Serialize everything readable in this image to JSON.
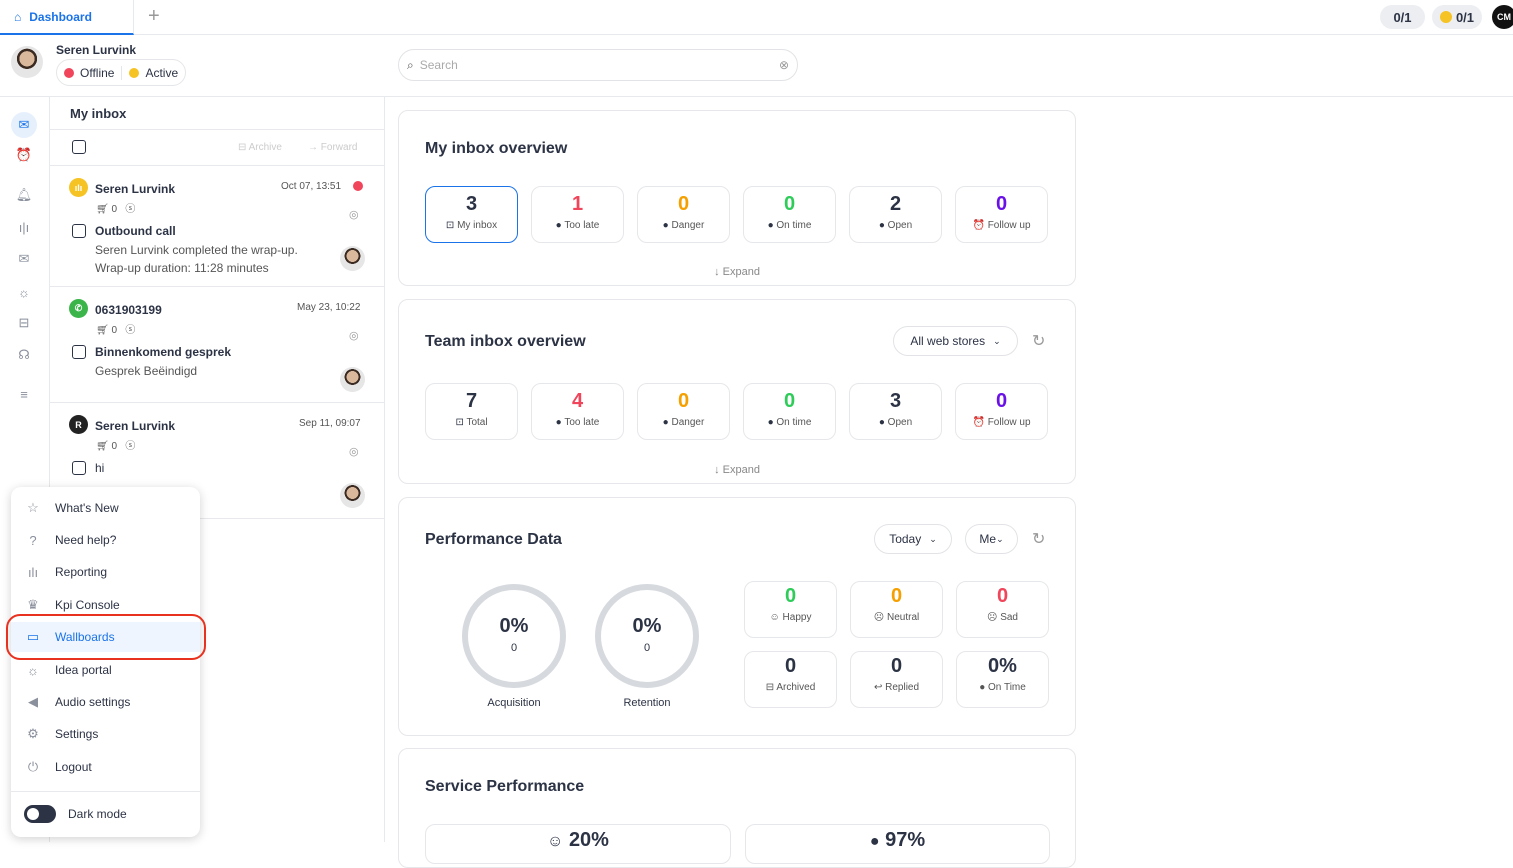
{
  "tabs": {
    "active": "Dashboard",
    "add_icon": "plus-icon"
  },
  "top_right": {
    "queue_count": "0/1",
    "voice_count": "0/1",
    "logo": "CM"
  },
  "user": {
    "name": "Seren Lurvink",
    "status_offline": "Offline",
    "status_active": "Active"
  },
  "search": {
    "placeholder": "Search"
  },
  "inbox": {
    "title": "My inbox",
    "archive": "Archive",
    "forward": "Forward",
    "items": [
      {
        "name": "Seren Lurvink",
        "time": "Oct 07, 13:51",
        "cart": "0",
        "subject": "Outbound call",
        "line1": "Seren Lurvink completed the wrap-up.",
        "line2": "Wrap-up duration: 11:28 minutes",
        "channel": "voice",
        "channel_color": "#f6c324"
      },
      {
        "name": "0631903199",
        "time": "May 23, 10:22",
        "cart": "0",
        "subject": "Binnenkomend gesprek",
        "line1": "Gesprek Beëindigd",
        "line2": "",
        "channel": "phone",
        "channel_color": "#3bb54a"
      },
      {
        "name": "Seren Lurvink",
        "time": "Sep 11, 09:07",
        "cart": "0",
        "subject": "hi",
        "line1": "",
        "line2": "",
        "channel": "R",
        "channel_color": "#222"
      }
    ]
  },
  "menu": {
    "items": [
      "What's New",
      "Need help?",
      "Reporting",
      "Kpi Console",
      "Wallboards",
      "Idea portal",
      "Audio settings",
      "Settings",
      "Logout"
    ],
    "selected": "Wallboards",
    "dark_mode": "Dark mode"
  },
  "my_overview": {
    "title": "My inbox overview",
    "expand": "Expand",
    "tiles": [
      {
        "value": "3",
        "label": "My inbox",
        "color": "#2c3345",
        "icon": "inbox-icon"
      },
      {
        "value": "1",
        "label": "Too late",
        "color": "#f0455a",
        "icon": "clock-icon"
      },
      {
        "value": "0",
        "label": "Danger",
        "color": "#f5a000",
        "icon": "clock-icon"
      },
      {
        "value": "0",
        "label": "On time",
        "color": "#2fcc5a",
        "icon": "clock-icon"
      },
      {
        "value": "2",
        "label": "Open",
        "color": "#2c3345",
        "icon": "clock-icon"
      },
      {
        "value": "0",
        "label": "Follow up",
        "color": "#6a11e8",
        "icon": "alarm-icon"
      }
    ]
  },
  "team_overview": {
    "title": "Team inbox overview",
    "filter": "All web stores",
    "expand": "Expand",
    "tiles": [
      {
        "value": "7",
        "label": "Total",
        "color": "#2c3345",
        "icon": "inbox-icon"
      },
      {
        "value": "4",
        "label": "Too late",
        "color": "#f0455a",
        "icon": "clock-icon"
      },
      {
        "value": "0",
        "label": "Danger",
        "color": "#f5a000",
        "icon": "clock-icon"
      },
      {
        "value": "0",
        "label": "On time",
        "color": "#2fcc5a",
        "icon": "clock-icon"
      },
      {
        "value": "3",
        "label": "Open",
        "color": "#2c3345",
        "icon": "clock-icon"
      },
      {
        "value": "0",
        "label": "Follow up",
        "color": "#6a11e8",
        "icon": "alarm-icon"
      }
    ]
  },
  "performance": {
    "title": "Performance Data",
    "period": "Today",
    "scope": "Me",
    "rings": [
      {
        "pct": "0%",
        "count": "0",
        "label": "Acquisition"
      },
      {
        "pct": "0%",
        "count": "0",
        "label": "Retention"
      }
    ],
    "tiles": [
      {
        "value": "0",
        "label": "Happy",
        "color": "#2fcc5a",
        "icon": "☺"
      },
      {
        "value": "0",
        "label": "Neutral",
        "color": "#f5a000",
        "icon": "☹"
      },
      {
        "value": "0",
        "label": "Sad",
        "color": "#f0455a",
        "icon": "☹"
      },
      {
        "value": "0",
        "label": "Archived",
        "color": "#2c3345",
        "icon": "⊟"
      },
      {
        "value": "0",
        "label": "Replied",
        "color": "#2c3345",
        "icon": "↩"
      },
      {
        "value": "0%",
        "label": "On Time",
        "color": "#2c3345",
        "icon": "●"
      }
    ]
  },
  "service": {
    "title": "Service Performance",
    "values": [
      "20%",
      "97%"
    ]
  }
}
